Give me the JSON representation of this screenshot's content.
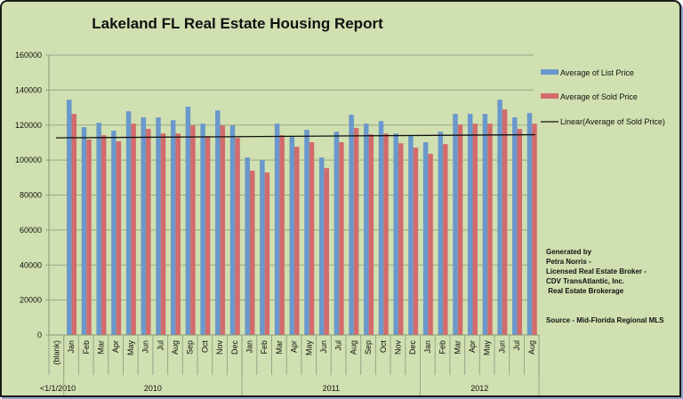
{
  "chart_data": {
    "type": "bar",
    "title": "Lakeland FL Real Estate Housing Report",
    "xlabel": "",
    "ylabel": "",
    "ylim": [
      0,
      160000
    ],
    "yticks": [
      "0",
      "20000",
      "40000",
      "60000",
      "80000",
      "100000",
      "120000",
      "140000",
      "160000"
    ],
    "ytick_values": [
      0,
      20000,
      40000,
      60000,
      80000,
      100000,
      120000,
      140000,
      160000
    ],
    "grid": true,
    "legend_position": "right",
    "groups": [
      {
        "label": "<1/1/2010",
        "categories": [
          "(blank)"
        ]
      },
      {
        "label": "2010",
        "categories": [
          "Jan",
          "Feb",
          "Mar",
          "Apr",
          "May",
          "Jun",
          "Jul",
          "Aug",
          "Sep",
          "Oct",
          "Nov",
          "Dec"
        ]
      },
      {
        "label": "2011",
        "categories": [
          "Jan",
          "Feb",
          "Mar",
          "Apr",
          "May",
          "Jun",
          "Jul",
          "Aug",
          "Sep",
          "Oct",
          "Nov",
          "Dec"
        ]
      },
      {
        "label": "2012",
        "categories": [
          "Jan",
          "Feb",
          "Mar",
          "Apr",
          "May",
          "Jun",
          "Jul",
          "Aug"
        ]
      }
    ],
    "series": [
      {
        "name": "Average of List Price",
        "color": "#6a98cc",
        "values": [
          null,
          134500,
          118800,
          121300,
          116800,
          127900,
          124400,
          124400,
          122800,
          130500,
          120800,
          128400,
          119800,
          101500,
          100000,
          120800,
          113200,
          117300,
          101500,
          116200,
          125900,
          120800,
          122300,
          115200,
          113700,
          110200,
          116200,
          126400,
          126400,
          126400,
          134500,
          124400,
          126900
        ]
      },
      {
        "name": "Average of Sold Price",
        "color": "#d26b6b",
        "values": [
          null,
          126400,
          111700,
          114200,
          110700,
          120800,
          117800,
          115200,
          115200,
          119800,
          113700,
          119800,
          112700,
          93900,
          92900,
          114200,
          107600,
          110200,
          95400,
          110200,
          118300,
          114700,
          115200,
          109600,
          107100,
          103600,
          109100,
          120300,
          120800,
          120800,
          128900,
          117800,
          120800
        ]
      }
    ],
    "trendline": {
      "name": "Linear(Average of Sold Price)",
      "color": "#111111",
      "start": 112700,
      "end": 114500
    }
  },
  "notes": {
    "generated_lines": [
      "Generated by",
      "Petra Norris -",
      "Licensed Real Estate Broker -",
      "CDV TransAtlantic, Inc.",
      " Real Estate Brokerage"
    ],
    "source": "Source - Mid-Florida Regional MLS"
  }
}
